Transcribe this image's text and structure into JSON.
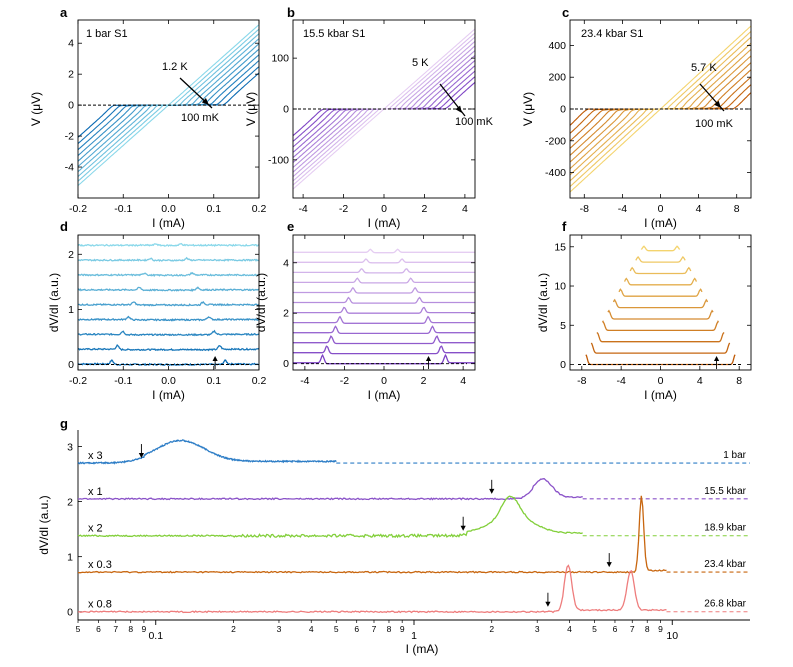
{
  "chart_data": [
    {
      "panel": "a",
      "type": "line",
      "title": "1 bar  S1",
      "xlabel": "I (mA)",
      "ylabel": "V (μV)",
      "xlim": [
        -0.2,
        0.2
      ],
      "ylim": [
        -6,
        5.5
      ],
      "xticks": [
        -0.2,
        -0.1,
        0.0,
        0.1,
        0.2
      ],
      "xtick_labels": [
        "-0.2",
        "-0.1",
        "0.0",
        "0.1",
        "0.2"
      ],
      "yticks": [
        -4,
        -2,
        0,
        2,
        4
      ],
      "ytick_labels": [
        "-4",
        "-2",
        "0",
        "2",
        "4"
      ],
      "annotations": [
        "1.2 K",
        "100 mK"
      ],
      "curves": {
        "count": 10,
        "Ic_max": 0.12,
        "Ic_min": 0.0,
        "high_slope": 26,
        "low_slope": 5,
        "color_low": "#0a6ab3",
        "color_high": "#8ad8ea"
      }
    },
    {
      "panel": "b",
      "type": "line",
      "title": "15.5 kbar  S1",
      "xlabel": "I (mA)",
      "ylabel": "V (μV)",
      "xlim": [
        -4.5,
        4.5
      ],
      "ylim": [
        -175,
        175
      ],
      "xticks": [
        -4,
        -2,
        0,
        2,
        4
      ],
      "xtick_labels": [
        "-4",
        "-2",
        "0",
        "2",
        "4"
      ],
      "yticks": [
        -100,
        0,
        100
      ],
      "ytick_labels": [
        "-100",
        "0",
        "100"
      ],
      "annotations": [
        "5 K",
        "100 mK"
      ],
      "curves": {
        "count": 12,
        "Ic_max": 3.0,
        "Ic_min": 0.0,
        "high_slope": 35,
        "low_slope": 28,
        "color_low": "#7d42c4",
        "color_high": "#e5cdf2"
      }
    },
    {
      "panel": "c",
      "type": "line",
      "title": "23.4 kbar  S1",
      "xlabel": "I (mA)",
      "ylabel": "V (μV)",
      "xlim": [
        -9.5,
        9.5
      ],
      "ylim": [
        -560,
        560
      ],
      "xticks": [
        -8,
        -4,
        0,
        4,
        8
      ],
      "xtick_labels": [
        "-8",
        "-4",
        "0",
        "4",
        "8"
      ],
      "yticks": [
        -400,
        -200,
        0,
        200,
        400
      ],
      "ytick_labels": [
        "-400",
        "-200",
        "0",
        "200",
        "400"
      ],
      "annotations": [
        "5.7 K",
        "100 mK"
      ],
      "curves": {
        "count": 11,
        "Ic_max": 7.6,
        "Ic_min": 0.0,
        "high_slope": 55,
        "low_slope": 55,
        "color_low": "#c05a06",
        "color_high": "#f4d46e"
      }
    },
    {
      "panel": "d",
      "type": "line",
      "xlabel": "I (mA)",
      "ylabel": "dV/dI (a.u.)",
      "xlim": [
        -0.2,
        0.2
      ],
      "ylim": [
        -0.1,
        2.35
      ],
      "xticks": [
        -0.2,
        -0.1,
        0.0,
        0.1,
        0.2
      ],
      "xtick_labels": [
        "-0.2",
        "-0.1",
        "0.0",
        "0.1",
        "0.2"
      ],
      "yticks": [
        0,
        1,
        2
      ],
      "ytick_labels": [
        "0",
        "1",
        "2"
      ],
      "traces": {
        "count": 9,
        "offset": 0.27,
        "peak_max": 0.125,
        "peak_height": 0.07,
        "noise": 0.012,
        "color_low": "#0a6ab3",
        "color_high": "#8ad8ea"
      },
      "arrow_x": 0.103
    },
    {
      "panel": "e",
      "type": "line",
      "xlabel": "I (mA)",
      "ylabel": "dV/dI (a.u.)",
      "xlim": [
        -4.6,
        4.6
      ],
      "ylim": [
        -0.25,
        5.1
      ],
      "xticks": [
        -4,
        -2,
        0,
        2,
        4
      ],
      "xtick_labels": [
        "-4",
        "-2",
        "0",
        "2",
        "4"
      ],
      "yticks": [
        0,
        2,
        4
      ],
      "ytick_labels": [
        "0",
        "2",
        "4"
      ],
      "traces": {
        "count": 12,
        "offset": 0.4,
        "peak_max": 3.1,
        "peak_height": 0.3,
        "noise": 0.0,
        "color_low": "#7d42c4",
        "color_high": "#e5cdf2"
      },
      "arrow_x": 2.25
    },
    {
      "panel": "f",
      "type": "line",
      "xlabel": "I (mA)",
      "ylabel": "dV/dI (a.u.)",
      "xlim": [
        -9.2,
        9.2
      ],
      "ylim": [
        -0.7,
        16.5
      ],
      "xticks": [
        -8,
        -4,
        0,
        4,
        8
      ],
      "xtick_labels": [
        "-8",
        "-4",
        "0",
        "4",
        "8"
      ],
      "yticks": [
        0,
        5,
        10,
        15
      ],
      "ytick_labels": [
        "0",
        "5",
        "10",
        "15"
      ],
      "traces": {
        "count": 11,
        "offset": 1.45,
        "peak_max": 7.6,
        "peak_height": 1.25,
        "noise": 0.0,
        "color_low": "#c05a06",
        "color_high": "#f4d46e"
      },
      "arrow_x": 5.7
    },
    {
      "panel": "g",
      "type": "line",
      "xlabel": "I (mA)",
      "ylabel": "dV/dI (a.u.)",
      "xscale": "log",
      "xlim": [
        0.05,
        20
      ],
      "ylim": [
        -0.15,
        3.3
      ],
      "yticks": [
        0,
        1,
        2,
        3
      ],
      "ytick_labels": [
        "0",
        "1",
        "2",
        "3"
      ],
      "xtick_major": [
        0.1,
        1,
        10
      ],
      "xtick_major_labels": [
        "0.1",
        "1",
        "10"
      ],
      "xtick_minor": [
        0.05,
        0.06,
        0.07,
        0.08,
        0.09,
        0.2,
        0.3,
        0.4,
        0.5,
        0.6,
        0.7,
        0.8,
        0.9,
        2,
        3,
        4,
        5,
        6,
        7,
        8,
        9
      ],
      "xtick_minor_labels": [
        "5",
        "6",
        "7",
        "8",
        "9",
        "2",
        "3",
        "4",
        "5",
        "6",
        "7",
        "8",
        "9",
        "2",
        "3",
        "4",
        "5",
        "6",
        "7",
        "8",
        "9"
      ],
      "series": [
        {
          "name": "1 bar",
          "scale": "x 3",
          "color": "#2d7dc6",
          "baseline": 2.7,
          "x_end": 0.5,
          "onset": 0.09,
          "peaks": [
            [
              0.125,
              0.38,
              0.13
            ]
          ],
          "arrow_x": 0.088
        },
        {
          "name": "15.5 kbar",
          "scale": "x 1",
          "color": "#8a52c8",
          "baseline": 2.05,
          "x_end": 4.5,
          "onset": 2.9,
          "peaks": [
            [
              3.15,
              0.33,
              0.05
            ]
          ],
          "arrow_x": 2.0
        },
        {
          "name": "18.9 kbar",
          "scale": "x 2",
          "color": "#82cf3a",
          "baseline": 1.38,
          "x_end": 4.5,
          "onset": 1.6,
          "peaks": [
            [
              2.0,
              0.12,
              0.08
            ],
            [
              2.35,
              0.5,
              0.05
            ],
            [
              2.7,
              0.2,
              0.08
            ]
          ],
          "arrow_x": 1.55
        },
        {
          "name": "23.4 kbar",
          "scale": "x 0.3",
          "color": "#c8660f",
          "baseline": 0.72,
          "x_end": 9.5,
          "onset": 7.3,
          "peaks": [
            [
              7.6,
              1.35,
              0.012
            ]
          ],
          "arrow_x": 5.7
        },
        {
          "name": "26.8 kbar",
          "scale": "x 0.8",
          "color": "#ee7d7d",
          "baseline": 0.0,
          "x_end": 9.5,
          "onset": 3.8,
          "peaks": [
            [
              3.95,
              0.82,
              0.02
            ],
            [
              6.9,
              0.72,
              0.02
            ]
          ],
          "arrow_x": 3.3
        }
      ]
    }
  ]
}
